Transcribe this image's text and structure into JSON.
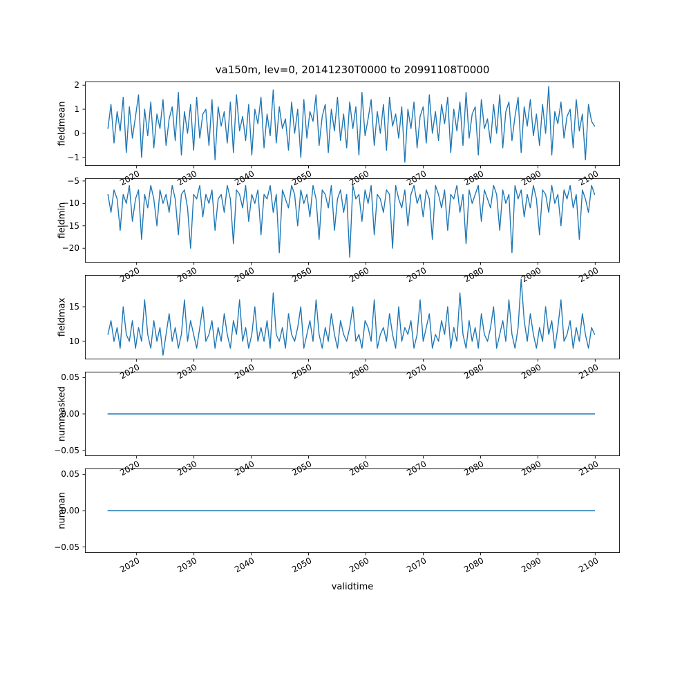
{
  "chart_data": {
    "type": "line",
    "title": "va150m, lev=0, 20141230T0000 to 20991108T0000",
    "xlabel": "validtime",
    "line_color": "#1f77b4",
    "axis_color": "#000000",
    "background": "#ffffff",
    "grid": false,
    "legend": "none",
    "xlim": [
      2011.0,
      2104.3
    ],
    "x_range": [
      2015.0,
      2099.9
    ],
    "xticks": [
      2020,
      2030,
      2040,
      2050,
      2060,
      2070,
      2080,
      2090,
      2100
    ],
    "subplots": [
      {
        "ylabel": "fieldmean",
        "ylim": [
          -1.35,
          2.15
        ],
        "yticks": [
          2,
          1,
          0,
          -1
        ],
        "ytick_labels": [
          "2",
          "1",
          "0",
          "−1"
        ],
        "values": [
          0.2,
          1.2,
          -0.4,
          0.9,
          0.1,
          1.5,
          -0.8,
          1.1,
          -0.2,
          0.7,
          1.6,
          -1.0,
          1.0,
          -0.1,
          1.3,
          -0.6,
          0.8,
          0.2,
          1.4,
          -0.5,
          0.6,
          1.1,
          -0.3,
          1.7,
          -0.9,
          0.9,
          0.0,
          1.2,
          -0.7,
          1.5,
          -0.2,
          0.8,
          1.0,
          -0.5,
          1.4,
          -1.1,
          1.1,
          0.3,
          0.9,
          -0.4,
          1.3,
          -0.8,
          1.6,
          0.1,
          0.7,
          -0.3,
          1.2,
          -0.9,
          1.0,
          0.4,
          1.5,
          -0.6,
          0.8,
          -0.1,
          1.8,
          -0.4,
          1.1,
          0.2,
          0.6,
          -0.7,
          1.3,
          0.0,
          1.0,
          -1.0,
          1.4,
          -0.2,
          0.9,
          0.5,
          1.6,
          -0.5,
          0.7,
          1.2,
          -0.8,
          1.0,
          0.1,
          1.5,
          -0.3,
          0.8,
          -0.6,
          1.3,
          0.2,
          1.1,
          -0.9,
          1.7,
          -0.1,
          0.6,
          1.4,
          -0.5,
          0.9,
          0.0,
          1.2,
          -0.7,
          1.5,
          0.3,
          0.8,
          -0.2,
          1.1,
          -1.2,
          1.0,
          0.2,
          1.3,
          -0.6,
          0.7,
          1.1,
          -0.4,
          1.6,
          0.0,
          0.9,
          -0.3,
          1.2,
          0.4,
          1.5,
          -0.8,
          1.0,
          0.1,
          1.3,
          -0.5,
          1.7,
          -0.2,
          0.8,
          1.1,
          -0.9,
          1.4,
          0.2,
          0.6,
          -0.4,
          1.2,
          0.0,
          1.6,
          -0.6,
          0.9,
          1.3,
          -0.3,
          0.7,
          1.5,
          -0.8,
          1.1,
          0.3,
          1.4,
          -0.1,
          0.8,
          -0.5,
          1.2,
          0.0,
          1.95,
          -0.9,
          0.9,
          0.4,
          1.3,
          -0.2,
          0.7,
          1.0,
          -0.6,
          1.4,
          0.1,
          0.8,
          -1.1,
          1.2,
          0.5,
          0.3
        ]
      },
      {
        "ylabel": "fieldmin",
        "ylim": [
          -23.2,
          -4.4
        ],
        "yticks": [
          -5,
          -10,
          -15,
          -20
        ],
        "ytick_labels": [
          "−5",
          "−10",
          "−15",
          "−20"
        ],
        "values": [
          -8,
          -12,
          -7,
          -9,
          -16,
          -8,
          -10,
          -6,
          -14,
          -9,
          -7,
          -18,
          -8,
          -11,
          -6,
          -9,
          -15,
          -7,
          -10,
          -8,
          -12,
          -6,
          -9,
          -17,
          -8,
          -7,
          -11,
          -20,
          -8,
          -9,
          -6,
          -13,
          -8,
          -10,
          -7,
          -16,
          -9,
          -8,
          -12,
          -6,
          -9,
          -19,
          -7,
          -8,
          -11,
          -6,
          -14,
          -8,
          -10,
          -7,
          -17,
          -8,
          -9,
          -6,
          -12,
          -8,
          -21,
          -7,
          -9,
          -11,
          -6,
          -8,
          -15,
          -7,
          -10,
          -8,
          -13,
          -6,
          -9,
          -18,
          -7,
          -8,
          -11,
          -6,
          -16,
          -9,
          -7,
          -12,
          -8,
          -22,
          -6,
          -9,
          -8,
          -14,
          -7,
          -10,
          -6,
          -17,
          -8,
          -9,
          -12,
          -7,
          -8,
          -20,
          -6,
          -9,
          -11,
          -7,
          -15,
          -8,
          -6,
          -10,
          -8,
          -13,
          -7,
          -9,
          -18,
          -6,
          -8,
          -11,
          -7,
          -16,
          -8,
          -9,
          -6,
          -12,
          -8,
          -19,
          -7,
          -10,
          -8,
          -6,
          -14,
          -7,
          -9,
          -11,
          -6,
          -8,
          -16,
          -7,
          -10,
          -8,
          -21,
          -6,
          -9,
          -7,
          -13,
          -8,
          -11,
          -6,
          -9,
          -17,
          -7,
          -8,
          -12,
          -6,
          -10,
          -8,
          -15,
          -7,
          -9,
          -6,
          -11,
          -8,
          -18,
          -7,
          -9,
          -12,
          -6,
          -8
        ]
      },
      {
        "ylabel": "fieldmax",
        "ylim": [
          7.4,
          19.6
        ],
        "yticks": [
          15,
          10
        ],
        "ytick_labels": [
          "15",
          "10"
        ],
        "values": [
          11,
          13,
          10,
          12,
          9,
          15,
          11,
          10,
          13,
          9,
          12,
          10,
          16,
          11,
          9,
          13,
          10,
          12,
          8,
          11,
          14,
          10,
          12,
          9,
          11,
          16,
          10,
          13,
          11,
          9,
          12,
          15,
          10,
          11,
          13,
          9,
          12,
          10,
          14,
          11,
          9,
          13,
          11,
          16,
          10,
          12,
          9,
          11,
          15,
          10,
          12,
          10,
          13,
          9,
          17,
          11,
          10,
          12,
          9,
          14,
          11,
          10,
          12,
          15,
          9,
          11,
          13,
          10,
          16,
          11,
          9,
          12,
          10,
          14,
          11,
          9,
          13,
          11,
          10,
          12,
          15,
          10,
          11,
          9,
          13,
          12,
          10,
          16,
          9,
          11,
          12,
          10,
          14,
          11,
          9,
          15,
          10,
          12,
          11,
          13,
          9,
          11,
          16,
          10,
          12,
          14,
          9,
          11,
          10,
          13,
          11,
          15,
          9,
          12,
          10,
          17,
          11,
          9,
          13,
          10,
          12,
          9,
          14,
          11,
          10,
          12,
          15,
          9,
          11,
          13,
          10,
          16,
          11,
          9,
          12,
          19,
          13,
          10,
          14,
          11,
          9,
          12,
          10,
          15,
          11,
          13,
          9,
          12,
          16,
          10,
          11,
          13,
          9,
          12,
          10,
          14,
          11,
          9,
          12,
          11
        ]
      },
      {
        "ylabel": "nummasked",
        "ylim": [
          -0.058,
          0.058
        ],
        "yticks": [
          0.05,
          0,
          -0.05
        ],
        "ytick_labels": [
          "0.05",
          "0.00",
          "−0.05"
        ],
        "values": [
          0,
          0
        ]
      },
      {
        "ylabel": "numnan",
        "ylim": [
          -0.058,
          0.058
        ],
        "yticks": [
          0.05,
          0,
          -0.05
        ],
        "ytick_labels": [
          "0.05",
          "0.00",
          "−0.05"
        ],
        "values": [
          0,
          0
        ]
      }
    ]
  }
}
